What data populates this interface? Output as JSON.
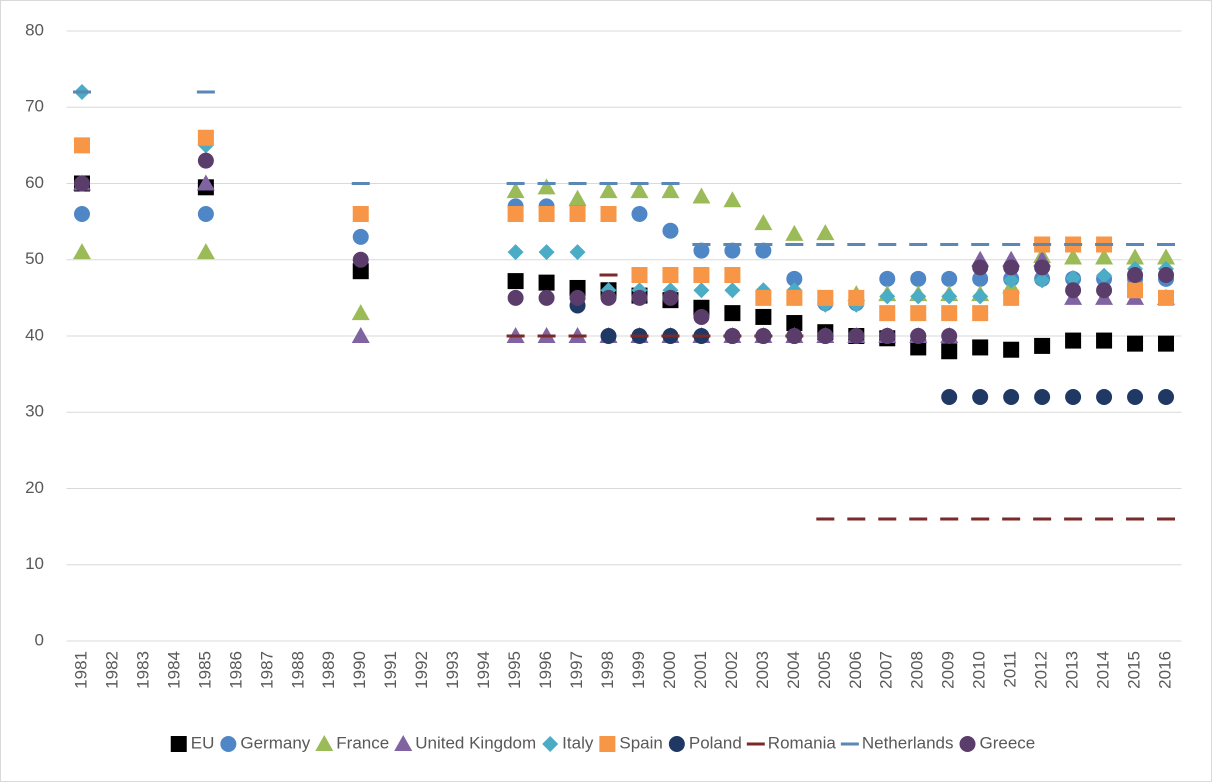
{
  "chart_data": {
    "type": "scatter",
    "categories": [
      "1981",
      "1982",
      "1983",
      "1984",
      "1985",
      "1986",
      "1987",
      "1988",
      "1989",
      "1990",
      "1991",
      "1992",
      "1993",
      "1994",
      "1995",
      "1996",
      "1997",
      "1998",
      "1999",
      "2000",
      "2001",
      "2002",
      "2003",
      "2004",
      "2005",
      "2006",
      "2007",
      "2008",
      "2009",
      "2010",
      "2011",
      "2012",
      "2013",
      "2014",
      "2015",
      "2016"
    ],
    "ylim": [
      0,
      80
    ],
    "yticks": [
      0,
      10,
      20,
      30,
      40,
      50,
      60,
      70,
      80
    ],
    "grid": true,
    "legend": "bottom",
    "series": [
      {
        "name": "EU",
        "color": "#000000",
        "marker": "square",
        "values": [
          60,
          null,
          null,
          null,
          59.5,
          null,
          null,
          null,
          null,
          48.5,
          null,
          null,
          null,
          null,
          47.2,
          47,
          46.3,
          46,
          45.3,
          44.7,
          43.7,
          43,
          42.5,
          41.7,
          40.5,
          40,
          39.7,
          38.5,
          38,
          38.5,
          38.2,
          38.7,
          39.4,
          39.4,
          39,
          39
        ]
      },
      {
        "name": "Germany",
        "color": "#4f86c6",
        "marker": "circle",
        "values": [
          56,
          null,
          null,
          null,
          56,
          null,
          null,
          null,
          null,
          53,
          null,
          null,
          null,
          null,
          57,
          57,
          57,
          56,
          56,
          53.8,
          51.2,
          51.2,
          51.2,
          47.5,
          44.3,
          44.3,
          47.5,
          47.5,
          47.5,
          47.5,
          47.5,
          47.5,
          47.5,
          47.5,
          47.5,
          47.5
        ]
      },
      {
        "name": "France",
        "color": "#9bbb59",
        "marker": "triangle",
        "values": [
          51,
          null,
          null,
          null,
          51,
          null,
          null,
          null,
          null,
          43,
          null,
          null,
          null,
          null,
          59,
          59.5,
          58,
          59,
          59,
          59,
          58.3,
          57.8,
          54.8,
          53.4,
          53.5,
          45.5,
          45.5,
          45.5,
          45.5,
          45.5,
          46.5,
          50.5,
          50.3,
          50.3,
          50.3,
          50.3
        ]
      },
      {
        "name": "United Kingdom",
        "color": "#8064a2",
        "marker": "triangle",
        "values": [
          60,
          null,
          null,
          null,
          60,
          null,
          null,
          null,
          null,
          40,
          null,
          null,
          null,
          null,
          40,
          40,
          40,
          40,
          40,
          40,
          40,
          40,
          40,
          40,
          40,
          40,
          40,
          40,
          40,
          50,
          50,
          50,
          45,
          45,
          45,
          45
        ]
      },
      {
        "name": "Italy",
        "color": "#4bacc6",
        "marker": "diamond",
        "values": [
          72,
          null,
          null,
          null,
          65,
          null,
          null,
          null,
          null,
          null,
          null,
          null,
          null,
          null,
          51,
          51,
          51,
          46,
          46,
          46,
          46,
          46,
          46,
          46,
          44.1,
          44.1,
          45.2,
          45.2,
          45.2,
          45.2,
          47.3,
          47.3,
          47.6,
          47.9,
          48.8,
          48.8
        ]
      },
      {
        "name": "Spain",
        "color": "#f79646",
        "marker": "square",
        "values": [
          65,
          null,
          null,
          null,
          66,
          null,
          null,
          null,
          null,
          56,
          null,
          null,
          null,
          null,
          56,
          56,
          56,
          56,
          48,
          48,
          48,
          48,
          45,
          45,
          45,
          45,
          43,
          43,
          43,
          43,
          45,
          52,
          52,
          52,
          46,
          45
        ]
      },
      {
        "name": "Poland",
        "color": "#1f3864",
        "marker": "circle",
        "values": [
          null,
          null,
          null,
          null,
          null,
          null,
          null,
          null,
          null,
          null,
          null,
          null,
          null,
          null,
          null,
          null,
          44,
          40,
          40,
          40,
          40,
          40,
          40,
          40,
          40,
          40,
          40,
          40,
          32,
          32,
          32,
          32,
          32,
          32,
          32,
          32
        ]
      },
      {
        "name": "Romania",
        "color": "#7b2a2a",
        "marker": "dash",
        "values": [
          null,
          null,
          null,
          null,
          null,
          null,
          null,
          null,
          null,
          null,
          null,
          null,
          null,
          null,
          40,
          40,
          40,
          48,
          40,
          40,
          40,
          40,
          40,
          40,
          16,
          16,
          16,
          16,
          16,
          16,
          16,
          16,
          16,
          16,
          16,
          16
        ]
      },
      {
        "name": "Netherlands",
        "color": "#5a87b4",
        "marker": "dash",
        "values": [
          72,
          null,
          null,
          null,
          72,
          null,
          null,
          null,
          null,
          60,
          null,
          null,
          null,
          null,
          60,
          60,
          60,
          60,
          60,
          60,
          52,
          52,
          52,
          52,
          52,
          52,
          52,
          52,
          52,
          52,
          52,
          52,
          52,
          52,
          52,
          52
        ]
      },
      {
        "name": "Greece",
        "color": "#5b3d6b",
        "marker": "circle",
        "values": [
          60,
          null,
          null,
          null,
          63,
          null,
          null,
          null,
          null,
          50,
          null,
          null,
          null,
          null,
          45,
          45,
          45,
          45,
          45,
          45,
          42.5,
          40,
          40,
          40,
          40,
          40,
          40,
          40,
          40,
          49,
          49,
          49,
          46,
          46,
          48,
          48
        ]
      }
    ]
  }
}
